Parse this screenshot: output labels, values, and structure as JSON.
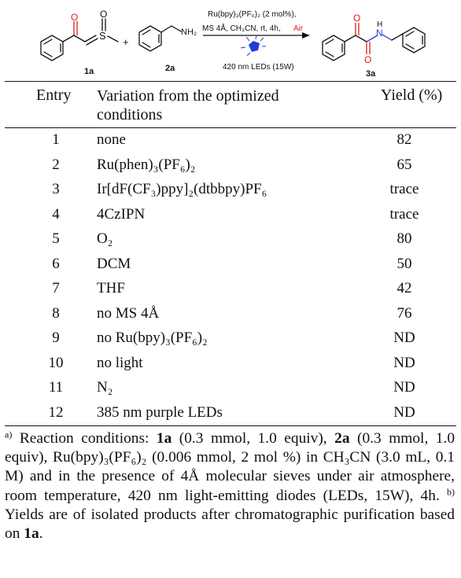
{
  "scheme": {
    "label_1a": "1a",
    "label_2a": "2a",
    "label_3a": "3a",
    "plus": "+",
    "atom_O": "O",
    "atom_S": "S",
    "atom_N": "N",
    "atom_H": "H",
    "atom_NH2": "NH₂",
    "conditions_line1": "Ru(bpy)₃(PF₆)₂ (2 mol%),",
    "conditions_line2": "MS 4Å, CH₃CN, rt, 4h,",
    "conditions_air": "Air",
    "light_label": "420 nm LEDs (15W)"
  },
  "table": {
    "headers": {
      "entry": "Entry",
      "variation_line1": "Variation from the optimized",
      "variation_line2": "conditions",
      "yield": "Yield (%)"
    },
    "rows": [
      {
        "entry": "1",
        "variation": "none",
        "yield": "82"
      },
      {
        "entry": "2",
        "variation": "Ru(phen)₃(PF₆)₂",
        "yield": "65"
      },
      {
        "entry": "3",
        "variation": "Ir[dF(CF₃)ppy]₂(dtbbpy)PF₆",
        "yield": "trace"
      },
      {
        "entry": "4",
        "variation": "4CzIPN",
        "yield": "trace"
      },
      {
        "entry": "5",
        "variation": "O₂",
        "yield": "80"
      },
      {
        "entry": "6",
        "variation": "DCM",
        "yield": "50"
      },
      {
        "entry": "7",
        "variation": "THF",
        "yield": "42"
      },
      {
        "entry": "8",
        "variation": "no MS 4Å",
        "yield": "76"
      },
      {
        "entry": "9",
        "variation": "no Ru(bpy)₃(PF₆)₂",
        "yield": "ND"
      },
      {
        "entry": "10",
        "variation": "no light",
        "yield": "ND"
      },
      {
        "entry": "11",
        "variation": "N₂",
        "yield": "ND"
      },
      {
        "entry": "12",
        "variation": "385 nm purple LEDs",
        "yield": "ND"
      }
    ]
  },
  "footnote": {
    "marker_a": "a)",
    "p1": " Reaction conditions: ",
    "b1": "1a",
    "p2": " (0.3 mmol, 1.0 equiv), ",
    "b2": "2a",
    "p3": " (0.3 mmol, 1.0 equiv), Ru(bpy)₃(PF₆)₂ (0.006 mmol, 2 mol %) in CH₃CN (3.0 mL, 0.1 M) and in the presence of 4Å molecular sieves under air atmosphere, room temperature, 420 nm light-emitting diodes (LEDs, 15W), 4h. ",
    "marker_b": "b)",
    "p4": " Yields are of isolated products after chromatographic purification based on ",
    "b3": "1a",
    "p5": "."
  }
}
